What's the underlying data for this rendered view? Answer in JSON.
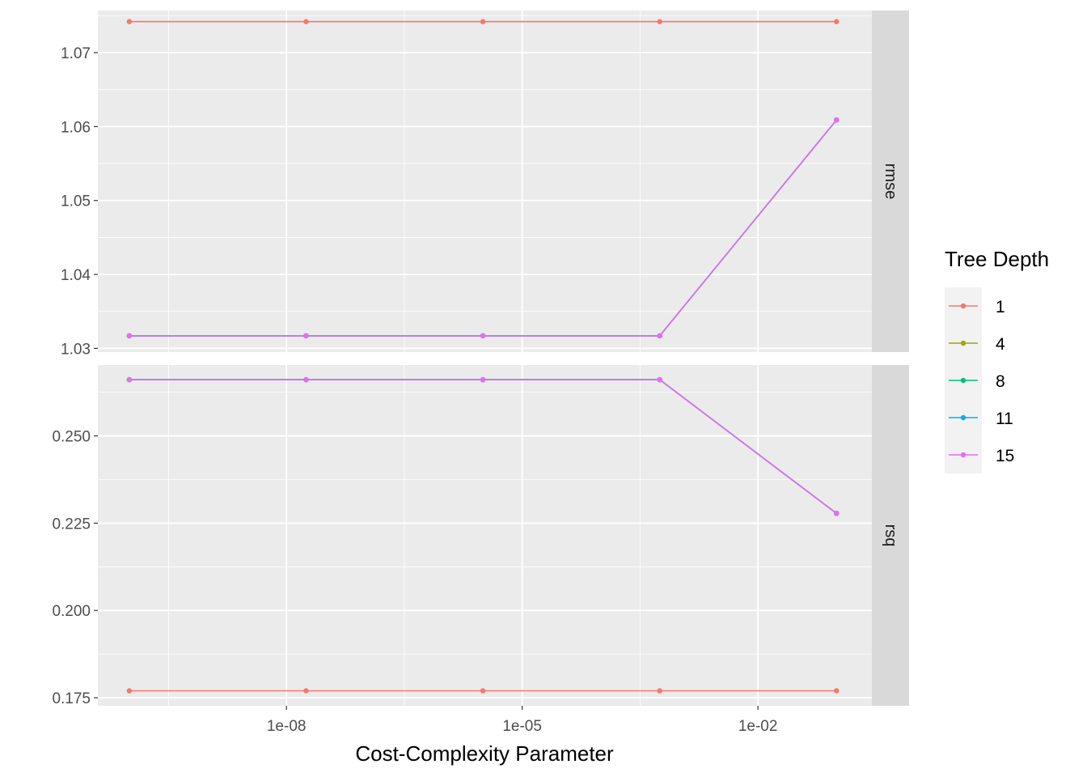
{
  "chart_data": {
    "type": "line",
    "xlabel": "Cost-Complexity Parameter",
    "ylabel": "",
    "x_scale": "log10",
    "x_ticks": [
      1e-08,
      1e-05,
      0.01
    ],
    "x_tick_labels": [
      "1e-08",
      "1e-05",
      "1e-02"
    ],
    "x": [
      1e-10,
      1.778e-08,
      3.162e-06,
      0.0005623,
      0.1
    ],
    "legend": {
      "title": "Tree Depth",
      "placement": "right",
      "entries": [
        {
          "label": "1",
          "color": "#F8766D"
        },
        {
          "label": "4",
          "color": "#A3A500"
        },
        {
          "label": "8",
          "color": "#00BF7D"
        },
        {
          "label": "11",
          "color": "#00B0F6"
        },
        {
          "label": "15",
          "color": "#E76BF3"
        }
      ]
    },
    "panels": [
      {
        "strip": "rmse",
        "ylim": [
          1.0295,
          1.0757
        ],
        "y_ticks": [
          1.03,
          1.04,
          1.05,
          1.06,
          1.07
        ],
        "y_tick_labels": [
          "1.03",
          "1.04",
          "1.05",
          "1.06",
          "1.07"
        ],
        "series": [
          {
            "name": "1",
            "color": "#F8766D",
            "values": [
              1.0742,
              1.0742,
              1.0742,
              1.0742,
              1.0742
            ]
          },
          {
            "name": "4",
            "color": "#A3A500",
            "values": [
              1.0317,
              1.0317,
              1.0317,
              1.0317,
              1.0609
            ]
          },
          {
            "name": "8",
            "color": "#00BF7D",
            "values": [
              1.0317,
              1.0317,
              1.0317,
              1.0317,
              1.0609
            ]
          },
          {
            "name": "11",
            "color": "#00B0F6",
            "values": [
              1.0317,
              1.0317,
              1.0317,
              1.0317,
              1.0609
            ]
          },
          {
            "name": "15",
            "color": "#E76BF3",
            "values": [
              1.0317,
              1.0317,
              1.0317,
              1.0317,
              1.0609
            ]
          }
        ]
      },
      {
        "strip": "rsq",
        "ylim": [
          0.1727,
          0.2703
        ],
        "y_ticks": [
          0.175,
          0.2,
          0.225,
          0.25
        ],
        "y_tick_labels": [
          "0.175",
          "0.200",
          "0.225",
          "0.250"
        ],
        "series": [
          {
            "name": "1",
            "color": "#F8766D",
            "values": [
              0.177,
              0.177,
              0.177,
              0.177,
              0.177
            ]
          },
          {
            "name": "4",
            "color": "#A3A500",
            "values": [
              0.2661,
              0.2661,
              0.2661,
              0.2661,
              0.2278
            ]
          },
          {
            "name": "8",
            "color": "#00BF7D",
            "values": [
              0.2661,
              0.2661,
              0.2661,
              0.2661,
              0.2278
            ]
          },
          {
            "name": "11",
            "color": "#00B0F6",
            "values": [
              0.2661,
              0.2661,
              0.2661,
              0.2661,
              0.2278
            ]
          },
          {
            "name": "15",
            "color": "#E76BF3",
            "values": [
              0.2661,
              0.2661,
              0.2661,
              0.2661,
              0.2278
            ]
          }
        ]
      }
    ],
    "grid": true,
    "panel_background": "#EBEBEB",
    "strip_background": "#D9D9D9"
  }
}
